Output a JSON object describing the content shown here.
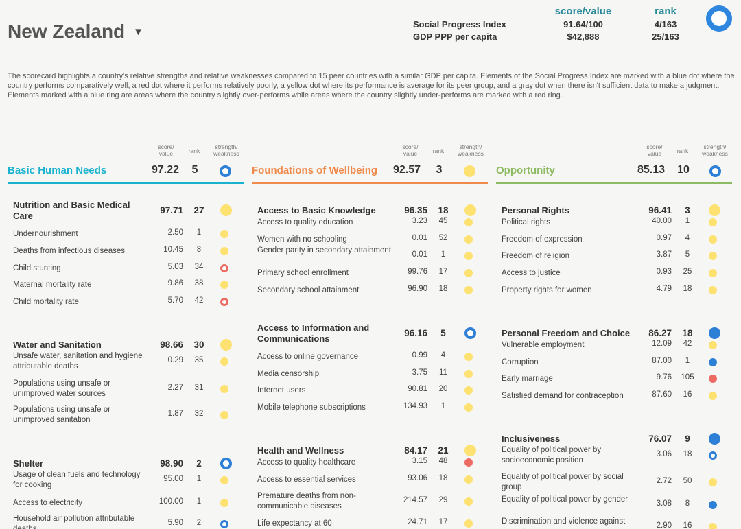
{
  "country": {
    "name": "New Zealand",
    "caret": "▼"
  },
  "header": {
    "score_title": "score/value",
    "rank_title": "rank",
    "rows": [
      {
        "label": "Social Progress Index",
        "score": "91.64/100",
        "rank": "4/163"
      },
      {
        "label": "GDP PPP per capita",
        "score": "$42,888",
        "rank": "25/163"
      }
    ]
  },
  "intro": "The scorecard highlights a country's relative strengths and relative weaknesses compared to 15 peer countries with a similar GDP per capita. Elements of the Social Progress Index are marked with a blue dot where the country performs comparatively well, a red dot where it performs relatively poorly, a yellow dot where its performance is average for its peer group, and a gray dot when there isn't sufficient data to make a judgment. Elements marked with a blue ring are areas where the country slightly over-performs while areas where the country slightly under-performs are marked with a red ring.",
  "col_labels": {
    "score_line1": "score/",
    "score_line2": "value",
    "rank": "rank",
    "sw_line1": "strength/",
    "sw_line2": "weakness"
  },
  "colors": {
    "bhn": "#1ab3cf",
    "fow": "#f08a4b",
    "opp": "#8dbb63",
    "blue": "#2e7fd6",
    "red": "#ec6b63",
    "yellow": "#fde171"
  },
  "dimensions": [
    {
      "name": "Basic Human Needs",
      "score": "97.22",
      "rank": "5",
      "status": "ring-blue",
      "components": [
        {
          "name": "Nutrition and Basic Medical Care",
          "score": "97.71",
          "rank": "27",
          "status": "yellow",
          "indicators": [
            {
              "name": "Undernourishment",
              "score": "2.50",
              "rank": "1",
              "status": "yellow"
            },
            {
              "name": "Deaths from infectious diseases",
              "score": "10.45",
              "rank": "8",
              "status": "yellow"
            },
            {
              "name": "Child stunting",
              "score": "5.03",
              "rank": "34",
              "status": "ring-red"
            },
            {
              "name": "Maternal mortality rate",
              "score": "9.86",
              "rank": "38",
              "status": "yellow"
            },
            {
              "name": "Child mortality rate",
              "score": "5.70",
              "rank": "42",
              "status": "ring-red"
            }
          ]
        },
        {
          "name": "Water and Sanitation",
          "score": "98.66",
          "rank": "30",
          "status": "yellow",
          "indicators": [
            {
              "name": "Unsafe water, sanitation and hygiene attributable deaths",
              "score": "0.29",
              "rank": "35",
              "status": "yellow"
            },
            {
              "name": "Populations using unsafe or unimproved water sources",
              "score": "2.27",
              "rank": "31",
              "status": "yellow"
            },
            {
              "name": "Populations using unsafe or unimproved sanitation",
              "score": "1.87",
              "rank": "32",
              "status": "yellow"
            }
          ]
        },
        {
          "name": "Shelter",
          "score": "98.90",
          "rank": "2",
          "status": "ring-blue",
          "indicators": [
            {
              "name": "Usage of clean fuels and technology for cooking",
              "score": "95.00",
              "rank": "1",
              "status": "yellow"
            },
            {
              "name": "Access to electricity",
              "score": "100.00",
              "rank": "1",
              "status": "yellow"
            },
            {
              "name": "Household air pollution attributable deaths",
              "score": "5.90",
              "rank": "2",
              "status": "ring-blue"
            }
          ]
        }
      ]
    },
    {
      "name": "Foundations of Wellbeing",
      "score": "92.57",
      "rank": "3",
      "status": "yellow",
      "components": [
        {
          "name": "Access to Basic Knowledge",
          "score": "96.35",
          "rank": "18",
          "status": "yellow",
          "indicators": [
            {
              "name": "Access to quality education",
              "score": "3.23",
              "rank": "45",
              "status": "yellow"
            },
            {
              "name": "Women with no schooling",
              "score": "0.01",
              "rank": "52",
              "status": "yellow"
            },
            {
              "name": "Gender parity in secondary attainment",
              "score": "0.01",
              "rank": "1",
              "status": "yellow"
            },
            {
              "name": "Primary school enrollment",
              "score": "99.76",
              "rank": "17",
              "status": "yellow"
            },
            {
              "name": "Secondary school attainment",
              "score": "96.90",
              "rank": "18",
              "status": "yellow"
            }
          ]
        },
        {
          "name": "Access to Information and Communications",
          "score": "96.16",
          "rank": "5",
          "status": "ring-blue",
          "indicators": [
            {
              "name": "Access to online governance",
              "score": "0.99",
              "rank": "4",
              "status": "yellow"
            },
            {
              "name": "Media censorship",
              "score": "3.75",
              "rank": "11",
              "status": "yellow"
            },
            {
              "name": "Internet users",
              "score": "90.81",
              "rank": "20",
              "status": "yellow"
            },
            {
              "name": "Mobile telephone subscriptions",
              "score": "134.93",
              "rank": "1",
              "status": "yellow"
            }
          ]
        },
        {
          "name": "Health and Wellness",
          "score": "84.17",
          "rank": "21",
          "status": "yellow",
          "indicators": [
            {
              "name": "Access to quality healthcare",
              "score": "3.15",
              "rank": "48",
              "status": "red"
            },
            {
              "name": "Access to essential services",
              "score": "93.06",
              "rank": "18",
              "status": "yellow"
            },
            {
              "name": "Premature deaths from non-communicable diseases",
              "score": "214.57",
              "rank": "29",
              "status": "yellow"
            },
            {
              "name": "Life expectancy at 60",
              "score": "24.71",
              "rank": "17",
              "status": "yellow"
            }
          ]
        }
      ]
    },
    {
      "name": "Opportunity",
      "score": "85.13",
      "rank": "10",
      "status": "ring-blue",
      "components": [
        {
          "name": "Personal Rights",
          "score": "96.41",
          "rank": "3",
          "status": "yellow",
          "indicators": [
            {
              "name": "Political rights",
              "score": "40.00",
              "rank": "1",
              "status": "yellow"
            },
            {
              "name": "Freedom of expression",
              "score": "0.97",
              "rank": "4",
              "status": "yellow"
            },
            {
              "name": "Freedom of religion",
              "score": "3.87",
              "rank": "5",
              "status": "yellow"
            },
            {
              "name": "Access to justice",
              "score": "0.93",
              "rank": "25",
              "status": "yellow"
            },
            {
              "name": "Property rights for women",
              "score": "4.79",
              "rank": "18",
              "status": "yellow"
            }
          ]
        },
        {
          "name": "Personal Freedom and Choice",
          "score": "86.27",
          "rank": "18",
          "status": "blue",
          "indicators": [
            {
              "name": "Vulnerable employment",
              "score": "12.09",
              "rank": "42",
              "status": "yellow"
            },
            {
              "name": "Corruption",
              "score": "87.00",
              "rank": "1",
              "status": "blue"
            },
            {
              "name": "Early marriage",
              "score": "9.76",
              "rank": "105",
              "status": "red"
            },
            {
              "name": "Satisfied demand for contraception",
              "score": "87.60",
              "rank": "16",
              "status": "yellow"
            }
          ]
        },
        {
          "name": "Inclusiveness",
          "score": "76.07",
          "rank": "9",
          "status": "blue",
          "indicators": [
            {
              "name": "Equality of political power by socioeconomic position",
              "score": "3.06",
              "rank": "18",
              "status": "ring-blue"
            },
            {
              "name": "Equality of political power by social group",
              "score": "2.72",
              "rank": "50",
              "status": "yellow"
            },
            {
              "name": "Equality of political power by gender",
              "score": "3.08",
              "rank": "8",
              "status": "blue"
            },
            {
              "name": "Discrimination and violence against minorities",
              "score": "2.90",
              "rank": "16",
              "status": "yellow"
            }
          ]
        }
      ]
    }
  ]
}
